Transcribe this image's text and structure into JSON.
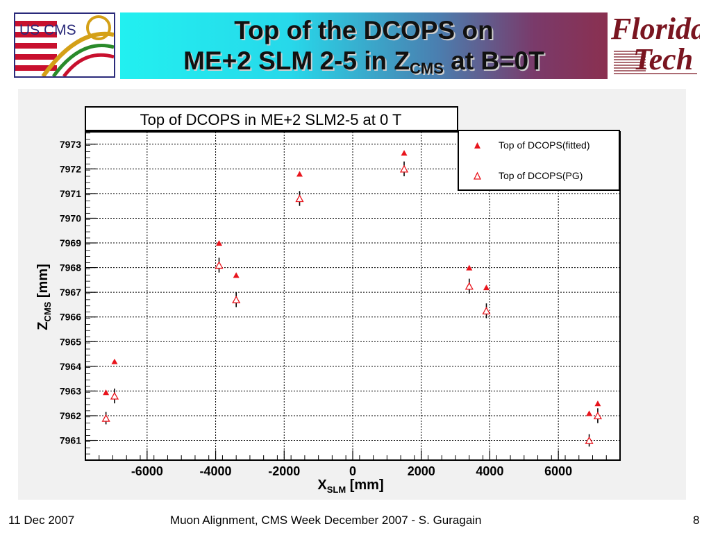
{
  "slide": {
    "title_line1": "Top of the DCOPS on",
    "title_line2_pre": "ME+2 SLM 2-5 in Z",
    "title_line2_sub": "CMS",
    "title_line2_post": " at B=0T",
    "logo_left_text": "US CMS",
    "logo_right_line1": "Florida",
    "logo_right_line2": "Tech",
    "footer_left": "11 Dec 2007",
    "footer_center": "Muon Alignment, CMS Week December 2007  - S. Guragain",
    "footer_right": "8"
  },
  "colors": {
    "marker": "#e8141c",
    "error_bar": "#000000",
    "accent_red": "#c8102e"
  },
  "chart_data": {
    "type": "scatter",
    "title": "Top of DCOPS in ME+2 SLM2-5 at 0 T",
    "xlabel_main": "X",
    "xlabel_sub": "SLM",
    "xlabel_unit": " [mm]",
    "ylabel_main": "Z",
    "ylabel_sub": "CMS",
    "ylabel_unit": " [mm]",
    "xlim": [
      -7800,
      7800
    ],
    "ylim": [
      7960.2,
      7973.5
    ],
    "xticks": [
      -6000,
      -4000,
      -2000,
      0,
      2000,
      4000,
      6000
    ],
    "yticks": [
      7961,
      7962,
      7963,
      7964,
      7965,
      7966,
      7967,
      7968,
      7969,
      7970,
      7971,
      7972,
      7973
    ],
    "grid": true,
    "legend_position": "top-right",
    "series": [
      {
        "name": "Top of DCOPS(fitted)",
        "marker": "filled-triangle",
        "points": [
          {
            "x": -7200,
            "y": 7962.95
          },
          {
            "x": -6950,
            "y": 7964.2
          },
          {
            "x": -3900,
            "y": 7969.0
          },
          {
            "x": -3400,
            "y": 7967.7
          },
          {
            "x": -1550,
            "y": 7971.8
          },
          {
            "x": 1500,
            "y": 7972.65
          },
          {
            "x": 3400,
            "y": 7968.0
          },
          {
            "x": 3900,
            "y": 7967.2
          },
          {
            "x": 6900,
            "y": 7962.1
          },
          {
            "x": 7150,
            "y": 7962.5
          }
        ]
      },
      {
        "name": "Top of DCOPS(PG)",
        "marker": "open-triangle",
        "points": [
          {
            "x": -7200,
            "y": 7961.9,
            "err": 0.25
          },
          {
            "x": -6950,
            "y": 7962.8,
            "err": 0.3
          },
          {
            "x": -3900,
            "y": 7968.1,
            "err": 0.3
          },
          {
            "x": -3400,
            "y": 7966.7,
            "err": 0.3
          },
          {
            "x": -1550,
            "y": 7970.8,
            "err": 0.3
          },
          {
            "x": 1500,
            "y": 7972.0,
            "err": 0.3
          },
          {
            "x": 3400,
            "y": 7967.25,
            "err": 0.3
          },
          {
            "x": 3900,
            "y": 7966.25,
            "err": 0.3
          },
          {
            "x": 6900,
            "y": 7961.0,
            "err": 0.25
          },
          {
            "x": 7150,
            "y": 7962.0,
            "err": 0.3
          }
        ]
      }
    ]
  }
}
